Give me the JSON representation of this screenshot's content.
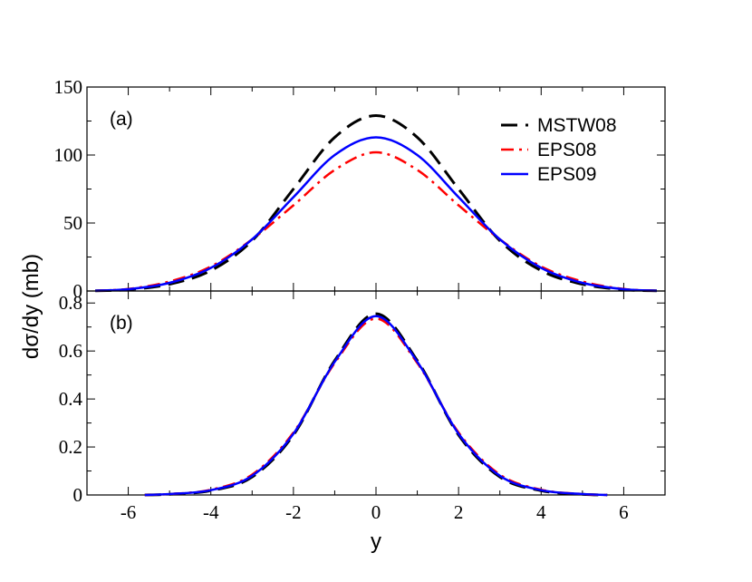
{
  "chart_data": {
    "type": "line",
    "xlabel": "y",
    "ylabel": "dσ/dy (mb)",
    "xlim": [
      -7,
      7
    ],
    "x_ticks": [
      -6,
      -4,
      -2,
      0,
      2,
      4,
      6
    ],
    "x_tick_labels": [
      "-6",
      "-4",
      "-2",
      "0",
      "2",
      "4",
      "6"
    ],
    "colors": {
      "MSTW08": "#000000",
      "EPS08": "#ff0000",
      "EPS09": "#0000ff"
    },
    "legend": [
      "MSTW08",
      "EPS08",
      "EPS09"
    ],
    "panels": [
      {
        "label": "(a)",
        "ylim": [
          0,
          150
        ],
        "y_ticks": [
          0,
          50,
          100,
          150
        ],
        "y_tick_labels": [
          "0",
          "50",
          "100",
          "150"
        ],
        "series": [
          {
            "name": "MSTW08",
            "style": "dash",
            "x": [
              -6.8,
              -6,
              -5,
              -4,
              -3,
              -2,
              -1,
              0,
              1,
              2,
              3,
              4,
              5,
              6,
              6.8
            ],
            "y": [
              0.2,
              1,
              5,
              15,
              37,
              75,
              113,
              129,
              113,
              75,
              37,
              15,
              5,
              1,
              0.2
            ]
          },
          {
            "name": "EPS08",
            "style": "dashdot",
            "x": [
              -6.8,
              -6,
              -5,
              -4,
              -3,
              -2,
              -1,
              0,
              1,
              2,
              3,
              4,
              5,
              6,
              6.8
            ],
            "y": [
              0.2,
              1.5,
              7,
              18,
              38,
              63,
              89,
              102,
              89,
              63,
              38,
              18,
              7,
              1.5,
              0.2
            ]
          },
          {
            "name": "EPS09",
            "style": "solid",
            "x": [
              -6.8,
              -6,
              -5,
              -4,
              -3,
              -2,
              -1,
              0,
              1,
              2,
              3,
              4,
              5,
              6,
              6.8
            ],
            "y": [
              0.2,
              1.3,
              6,
              17,
              38,
              69,
              100,
              113,
              100,
              69,
              38,
              17,
              6,
              1.3,
              0.2
            ]
          }
        ]
      },
      {
        "label": "(b)",
        "ylim": [
          0,
          0.85
        ],
        "y_ticks": [
          0,
          0.2,
          0.4,
          0.6,
          0.8
        ],
        "y_tick_labels": [
          "0",
          "0.2",
          "0.4",
          "0.6",
          "0.8"
        ],
        "series": [
          {
            "name": "MSTW08",
            "style": "dash",
            "x": [
              -5.6,
              -5,
              -4,
              -3,
              -2,
              -1,
              0,
              1,
              2,
              3,
              4,
              5,
              5.6
            ],
            "y": [
              0,
              0.003,
              0.018,
              0.075,
              0.25,
              0.56,
              0.755,
              0.56,
              0.25,
              0.075,
              0.018,
              0.003,
              0
            ]
          },
          {
            "name": "EPS08",
            "style": "dashdot",
            "x": [
              -5.6,
              -5,
              -4,
              -3,
              -2,
              -1,
              0,
              1,
              2,
              3,
              4,
              5,
              5.6
            ],
            "y": [
              0,
              0.004,
              0.022,
              0.085,
              0.26,
              0.55,
              0.735,
              0.55,
              0.26,
              0.085,
              0.022,
              0.004,
              0
            ]
          },
          {
            "name": "EPS09",
            "style": "solid",
            "x": [
              -5.6,
              -5,
              -4,
              -3,
              -2,
              -1,
              0,
              1,
              2,
              3,
              4,
              5,
              5.6
            ],
            "y": [
              0,
              0.004,
              0.02,
              0.08,
              0.255,
              0.555,
              0.745,
              0.555,
              0.255,
              0.08,
              0.02,
              0.004,
              0
            ]
          }
        ]
      }
    ]
  }
}
